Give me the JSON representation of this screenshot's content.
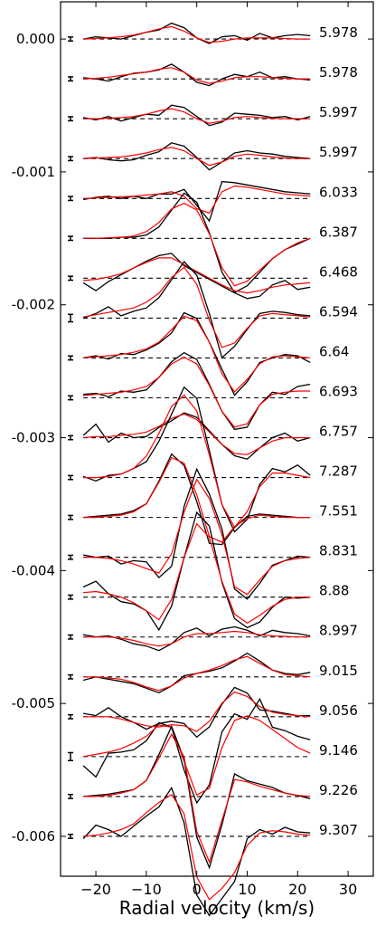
{
  "chart_data": {
    "type": "line",
    "title": "",
    "xlabel": "Radial velocity (km/s)",
    "ylabel": "",
    "xlim": [
      -27,
      35
    ],
    "ylim": [
      -0.0063,
      0.00028
    ],
    "xticks": [
      -20,
      -10,
      0,
      10,
      20,
      30
    ],
    "xtick_labels": [
      "−20",
      "−10",
      "0",
      "10",
      "20",
      "30"
    ],
    "yticks": [
      0.0,
      -0.001,
      -0.002,
      -0.003,
      -0.004,
      -0.005,
      -0.006
    ],
    "ytick_labels": [
      "0.000",
      "-0.001",
      "-0.002",
      "-0.003",
      "-0.004",
      "-0.005",
      "-0.006"
    ],
    "grid": false,
    "colors": {
      "observed": "#000000",
      "model": "#ff0000",
      "baseline": "#000000"
    },
    "x": [
      -22.5,
      -20,
      -17.5,
      -15,
      -12.5,
      -10,
      -7.5,
      -5,
      -2.5,
      0,
      2.5,
      5,
      7.5,
      10,
      12.5,
      15,
      17.5,
      20,
      22.5
    ],
    "profiles": [
      {
        "label": "5.978",
        "offset": 0.0,
        "amp": 8.5e-05,
        "err": 1.5e-05,
        "observed": [
          0,
          0.2,
          0.1,
          0,
          0.3,
          0.6,
          0.8,
          1.4,
          1.0,
          0.1,
          -0.4,
          0.2,
          0.3,
          -0.1,
          0.5,
          0.1,
          0.3,
          0.4,
          0.3
        ],
        "model": [
          0,
          0.05,
          0.1,
          0.2,
          0.35,
          0.6,
          0.9,
          1.1,
          0.7,
          0.1,
          -0.3,
          -0.2,
          0,
          0.1,
          0.1,
          0.1,
          0.05,
          0,
          0
        ]
      },
      {
        "label": "5.978",
        "offset": -0.0003,
        "amp": 8.5e-05,
        "err": 1.5e-05,
        "observed": [
          0.1,
          0,
          -0.2,
          0.2,
          0.5,
          0.6,
          0.8,
          1.3,
          0.6,
          -0.3,
          -0.6,
          0,
          0.4,
          0.2,
          0.6,
          0.1,
          0.2,
          0,
          -0.1
        ],
        "model": [
          0,
          0.05,
          0.15,
          0.3,
          0.45,
          0.6,
          0.85,
          1.0,
          0.6,
          -0.1,
          -0.4,
          -0.2,
          0.1,
          0.2,
          0.2,
          0.1,
          0.05,
          0,
          0
        ]
      },
      {
        "label": "5.997",
        "offset": -0.0006,
        "amp": 8.5e-05,
        "err": 1.5e-05,
        "observed": [
          0.1,
          -0.1,
          0.2,
          -0.2,
          0.1,
          0.4,
          0.3,
          1.2,
          1.0,
          0.2,
          -0.6,
          -0.3,
          0.5,
          0.4,
          0.3,
          0.1,
          0.2,
          -0.1,
          0.2
        ],
        "model": [
          0,
          0,
          0.05,
          0.1,
          0.2,
          0.4,
          0.7,
          0.9,
          0.6,
          0,
          -0.4,
          -0.2,
          0.1,
          0.2,
          0.1,
          0.05,
          0,
          0,
          0
        ]
      },
      {
        "label": "5.997",
        "offset": -0.0009,
        "amp": 8.5e-05,
        "err": 1.5e-05,
        "observed": [
          0,
          0.1,
          -0.1,
          -0.2,
          -0.1,
          0.3,
          0.6,
          1.4,
          1.1,
          0.1,
          -1.0,
          -0.3,
          0.5,
          0.7,
          0.5,
          0.4,
          0.2,
          0.1,
          0
        ],
        "model": [
          0,
          0.05,
          0.1,
          0.15,
          0.3,
          0.5,
          0.8,
          1.0,
          0.7,
          0,
          -0.6,
          -0.3,
          0.2,
          0.4,
          0.3,
          0.15,
          0.05,
          0,
          0
        ]
      },
      {
        "label": "6.033",
        "offset": -0.0012,
        "amp": 8.5e-05,
        "err": 1.5e-05,
        "observed": [
          -0.1,
          0.1,
          0.2,
          0,
          0.2,
          0,
          0.4,
          0.4,
          0.8,
          -0.6,
          -2.0,
          1.5,
          1.4,
          1.2,
          1.0,
          0.8,
          0.6,
          0.5,
          0.4
        ],
        "model": [
          0,
          0.05,
          0.1,
          0.15,
          0.2,
          0.3,
          0.4,
          0.6,
          0.2,
          -0.9,
          -1.3,
          0.6,
          1.1,
          1.0,
          0.8,
          0.6,
          0.4,
          0.3,
          0.2
        ]
      },
      {
        "label": "6.387",
        "offset": -0.0015,
        "amp": 8.5e-05,
        "err": 1.5e-05,
        "observed": [
          0,
          0,
          0,
          0.1,
          0.1,
          0.3,
          1.0,
          2.5,
          4.0,
          3.2,
          0.5,
          -3.0,
          -4.8,
          -4.2,
          -3.0,
          -1.8,
          -1.0,
          -0.5,
          0
        ],
        "model": [
          0,
          0,
          0.05,
          0.1,
          0.2,
          0.6,
          1.4,
          2.6,
          3.1,
          2.5,
          0.4,
          -2.6,
          -4.2,
          -3.8,
          -2.8,
          -1.8,
          -1.0,
          -0.4,
          0
        ]
      },
      {
        "label": "6.468",
        "offset": -0.0018,
        "amp": 8.5e-05,
        "err": 1.5e-05,
        "observed": [
          -0.4,
          -1.1,
          -0.3,
          0.3,
          0.9,
          1.5,
          2.0,
          2.2,
          1.1,
          0.5,
          -0.1,
          -0.7,
          -1.3,
          -1.8,
          -1.6,
          -0.6,
          -0.2,
          -1.0,
          -0.8
        ],
        "model": [
          -0.2,
          -0.1,
          0.1,
          0.4,
          0.9,
          1.4,
          1.8,
          1.8,
          1.2,
          0.6,
          0,
          -0.6,
          -1.1,
          -1.3,
          -1.1,
          -0.8,
          -0.6,
          -0.5,
          -0.4
        ]
      },
      {
        "label": "6.594",
        "offset": -0.0021,
        "amp": 8.5e-05,
        "err": 2.8e-05,
        "observed": [
          0,
          0.4,
          1.0,
          0.2,
          0.6,
          0.9,
          1.8,
          3.4,
          5.0,
          3.8,
          0.4,
          -3.5,
          -2.5,
          -1.0,
          0.4,
          0.6,
          0.5,
          0.3,
          0.2
        ],
        "model": [
          0.1,
          0.3,
          0.5,
          0.7,
          0.9,
          1.4,
          2.2,
          3.6,
          4.5,
          3.0,
          -0.2,
          -2.6,
          -2.2,
          -0.9,
          0.2,
          0.4,
          0.3,
          0.2,
          0.1
        ]
      },
      {
        "label": "6.64",
        "offset": -0.0024,
        "amp": 8.5e-05,
        "err": 1.5e-05,
        "observed": [
          0,
          0.2,
          -0.1,
          0.4,
          0.3,
          0.7,
          1.3,
          2.2,
          4.0,
          3.5,
          1.4,
          -1.0,
          -3.3,
          -2.1,
          -0.4,
          0,
          0.3,
          0.2,
          -0.4
        ],
        "model": [
          0,
          0.1,
          0.2,
          0.3,
          0.5,
          0.8,
          1.4,
          2.5,
          3.7,
          3.3,
          1.4,
          -1.4,
          -3.0,
          -1.9,
          -0.5,
          0.1,
          0.2,
          0.1,
          0
        ]
      },
      {
        "label": "6.693",
        "offset": -0.0027,
        "amp": 8.5e-05,
        "err": 1.5e-05,
        "observed": [
          0.3,
          0.4,
          0.1,
          0.6,
          0.5,
          0.7,
          1.8,
          3.2,
          4.0,
          3.4,
          1.2,
          -1.2,
          -2.8,
          -2.6,
          -0.6,
          0.5,
          0.3,
          1.0,
          1.2
        ],
        "model": [
          0.2,
          0.3,
          0.4,
          0.5,
          0.7,
          1.0,
          1.8,
          3.0,
          3.6,
          3.0,
          1.1,
          -1.2,
          -2.6,
          -2.3,
          -0.6,
          0.3,
          0.5,
          0.6,
          0.6
        ]
      },
      {
        "label": "6.757",
        "offset": -0.003,
        "amp": 8.5e-05,
        "err": 1.5e-05,
        "observed": [
          0.2,
          1.2,
          -0.4,
          0.4,
          0,
          0.1,
          0.9,
          1.5,
          2.2,
          1.8,
          0.6,
          -0.6,
          -1.6,
          -1.9,
          -0.9,
          0,
          0.4,
          -0.3,
          0
        ],
        "model": [
          0,
          0.1,
          0.1,
          0.2,
          0.3,
          0.5,
          1.0,
          1.7,
          2.1,
          1.6,
          0.5,
          -0.6,
          -1.4,
          -1.5,
          -0.9,
          -0.3,
          0,
          0,
          0
        ]
      },
      {
        "label": "7.287",
        "offset": -0.0033,
        "amp": 8.5e-05,
        "err": 1.5e-05,
        "observed": [
          0.1,
          -0.3,
          0.2,
          0.3,
          0.8,
          1.4,
          3.2,
          5.6,
          8.0,
          7.0,
          2.4,
          -2.4,
          -4.8,
          -3.7,
          -0.6,
          0.8,
          0.5,
          1.1,
          0.2
        ],
        "model": [
          0,
          0,
          0.1,
          0.3,
          0.8,
          1.9,
          3.9,
          6.3,
          7.3,
          5.9,
          2.0,
          -2.4,
          -4.4,
          -3.0,
          -0.8,
          0.4,
          0.4,
          0.2,
          0
        ]
      },
      {
        "label": "7.551",
        "offset": -0.0036,
        "amp": 8.5e-05,
        "err": 1.5e-05,
        "observed": [
          0,
          0.1,
          0.2,
          0.3,
          0.6,
          1.2,
          3.2,
          5.6,
          4.6,
          1.4,
          -2.3,
          -2.4,
          -0.9,
          0.1,
          0.3,
          0.2,
          0.1,
          0,
          0
        ],
        "model": [
          0,
          0,
          0.1,
          0.2,
          0.5,
          1.2,
          3.1,
          5.3,
          4.8,
          2.0,
          -1.7,
          -2.2,
          -0.8,
          -0.1,
          0.2,
          0.1,
          0,
          0,
          0
        ]
      },
      {
        "label": "8.831",
        "offset": -0.0039,
        "amp": 8.5e-05,
        "err": 1.5e-05,
        "observed": [
          0.2,
          0,
          0.1,
          -0.6,
          -0.3,
          -0.4,
          -1.8,
          -0.8,
          4.5,
          7.8,
          5.6,
          2.5,
          -2.8,
          -3.7,
          -2.3,
          -0.7,
          -0.3,
          0.1,
          0
        ],
        "model": [
          0,
          0,
          -0.1,
          -0.3,
          -0.6,
          -1.0,
          -1.4,
          0.3,
          4.0,
          6.9,
          5.2,
          2.0,
          -2.6,
          -3.3,
          -2.0,
          -0.8,
          -0.3,
          -0.1,
          0
        ]
      },
      {
        "label": "8.88",
        "offset": -0.0042,
        "amp": 8.5e-05,
        "err": 1.5e-05,
        "observed": [
          0.9,
          1.4,
          0.3,
          -0.4,
          -0.6,
          -1.2,
          -2.9,
          -0.8,
          3.5,
          7.5,
          6.3,
          1.3,
          -1.9,
          -2.7,
          -2.2,
          -0.9,
          0,
          -0.1,
          0
        ],
        "model": [
          0.4,
          0.5,
          0.3,
          0,
          -0.5,
          -1.2,
          -2.0,
          -0.2,
          3.5,
          6.5,
          5.3,
          1.4,
          -1.5,
          -2.3,
          -1.6,
          -0.8,
          -0.2,
          0,
          0
        ]
      },
      {
        "label": "8.997",
        "offset": -0.0045,
        "amp": 8.5e-05,
        "err": 1.5e-05,
        "observed": [
          0.2,
          0,
          0.1,
          -0.2,
          -0.6,
          -0.8,
          -1.2,
          -0.6,
          0.4,
          0.8,
          0.1,
          0.7,
          0.9,
          0.6,
          0.1,
          0.6,
          0.4,
          0.3,
          0.1
        ],
        "model": [
          0,
          0,
          0,
          -0.1,
          -0.3,
          -0.6,
          -0.8,
          -0.6,
          0,
          0.3,
          0.3,
          0.4,
          0.5,
          0.4,
          0.2,
          0.1,
          0.05,
          0,
          0
        ]
      },
      {
        "label": "9.015",
        "offset": -0.0048,
        "amp": 8.5e-05,
        "err": 1.5e-05,
        "observed": [
          -0.3,
          0,
          -0.2,
          -0.4,
          -0.6,
          -1.0,
          -1.4,
          -0.8,
          0.1,
          0.3,
          0.5,
          0.8,
          1.4,
          2.1,
          1.4,
          0.6,
          0.3,
          0.2,
          0.4
        ],
        "model": [
          0,
          0,
          -0.1,
          -0.2,
          -0.5,
          -0.9,
          -1.2,
          -0.8,
          -0.1,
          0.3,
          0.6,
          1.0,
          1.5,
          1.8,
          1.2,
          0.6,
          0.2,
          0.1,
          0
        ]
      },
      {
        "label": "9.056",
        "offset": -0.0051,
        "amp": 8.5e-05,
        "err": 1.5e-05,
        "observed": [
          0.3,
          0.1,
          0.8,
          0,
          -0.5,
          -1.1,
          -0.6,
          -0.4,
          -0.6,
          -1.8,
          -0.9,
          1.1,
          2.6,
          2.1,
          0.6,
          0.5,
          0.3,
          0.1,
          0.1
        ],
        "model": [
          0,
          0,
          0,
          -0.2,
          -0.5,
          -0.8,
          -0.9,
          -0.7,
          -0.8,
          -1.3,
          -0.4,
          1.2,
          2.2,
          1.8,
          0.9,
          0.4,
          0.2,
          0.1,
          0
        ]
      },
      {
        "label": "9.146",
        "offset": -0.0054,
        "amp": 8.5e-05,
        "err": 3e-05,
        "observed": [
          -0.8,
          -1.8,
          0.3,
          0.4,
          0.6,
          1.4,
          3.0,
          2.6,
          -1.2,
          -4.1,
          -2.5,
          2.2,
          3.8,
          3.3,
          5.1,
          2.6,
          2.3,
          1.8,
          1.5
        ],
        "model": [
          0,
          0.2,
          0.4,
          0.7,
          1.2,
          1.8,
          2.8,
          2.6,
          -0.4,
          -3.4,
          -2.8,
          0.8,
          3.2,
          3.6,
          3.2,
          2.4,
          1.6,
          0.8,
          0.3
        ]
      },
      {
        "label": "9.226",
        "offset": -0.0057,
        "amp": 8.5e-05,
        "err": 1.5e-05,
        "observed": [
          0,
          0.1,
          0.2,
          0.4,
          0.6,
          1.4,
          3.7,
          6.2,
          3.3,
          -3.6,
          -6.3,
          -2.5,
          2.0,
          1.4,
          1.1,
          0.8,
          0.3,
          0.1,
          -0.2
        ],
        "model": [
          0,
          0,
          0.1,
          0.3,
          0.6,
          1.4,
          3.4,
          5.5,
          3.5,
          -3.1,
          -5.8,
          -2.1,
          1.5,
          1.3,
          0.9,
          0.6,
          0.3,
          0.1,
          0
        ]
      },
      {
        "label": "9.307",
        "offset": -0.006,
        "amp": 8.5e-05,
        "err": 1.5e-05,
        "observed": [
          -0.2,
          1.0,
          0.6,
          0,
          0.9,
          1.8,
          2.6,
          4.3,
          1.2,
          -5.2,
          -7.0,
          -5.5,
          -4.0,
          -0.2,
          0.6,
          0.2,
          0.8,
          0.4,
          0.3
        ],
        "model": [
          0,
          0.1,
          0.3,
          0.6,
          1.1,
          2.1,
          3.0,
          3.7,
          2.0,
          -3.6,
          -5.6,
          -4.6,
          -3.2,
          -0.8,
          0.3,
          0.5,
          0.4,
          0.2,
          0.1
        ]
      }
    ]
  }
}
